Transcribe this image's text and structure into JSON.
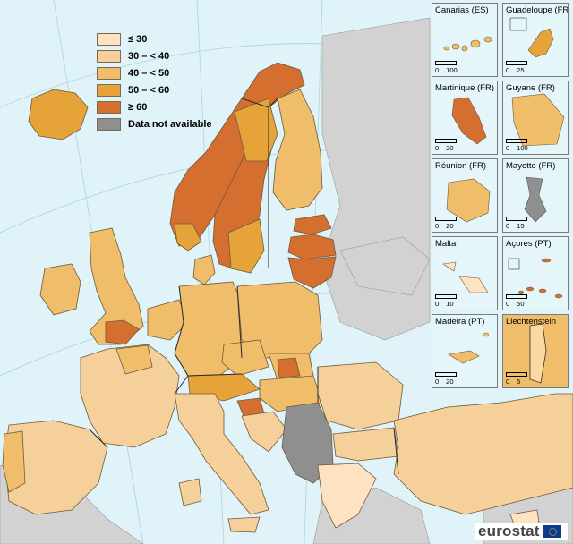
{
  "legend": {
    "items": [
      {
        "label": "≤ 30",
        "color": "#fde3c2"
      },
      {
        "label": "30 – < 40",
        "color": "#f5d09a"
      },
      {
        "label": "40 – < 50",
        "color": "#f0bd6a"
      },
      {
        "label": "50 – < 60",
        "color": "#e5a33a"
      },
      {
        "label": "≥ 60",
        "color": "#d56f30"
      },
      {
        "label": "Data not available",
        "color": "#8f8f8f"
      }
    ]
  },
  "insets": [
    {
      "name": "Canarias (ES)",
      "scale": [
        "0",
        "100"
      ]
    },
    {
      "name": "Guadeloupe (FR)",
      "scale": [
        "0",
        "25"
      ]
    },
    {
      "name": "Martinique (FR)",
      "scale": [
        "0",
        "20"
      ]
    },
    {
      "name": "Guyane (FR)",
      "scale": [
        "0",
        "100"
      ]
    },
    {
      "name": "Réunion (FR)",
      "scale": [
        "0",
        "20"
      ]
    },
    {
      "name": "Mayotte (FR)",
      "scale": [
        "0",
        "15"
      ]
    },
    {
      "name": "Malta",
      "scale": [
        "0",
        "10"
      ]
    },
    {
      "name": "Açores (PT)",
      "scale": [
        "0",
        "50"
      ]
    },
    {
      "name": "Madeira (PT)",
      "scale": [
        "0",
        "20"
      ]
    },
    {
      "name": "Liechtenstein",
      "scale": [
        "0",
        "5"
      ]
    }
  ],
  "logo": {
    "text": "eurostat",
    "icon": "eu-flag-icon"
  },
  "colors": {
    "sea": "#dff3f8",
    "nonEU": "#d2d2d2",
    "border": "#6d5a3c"
  }
}
